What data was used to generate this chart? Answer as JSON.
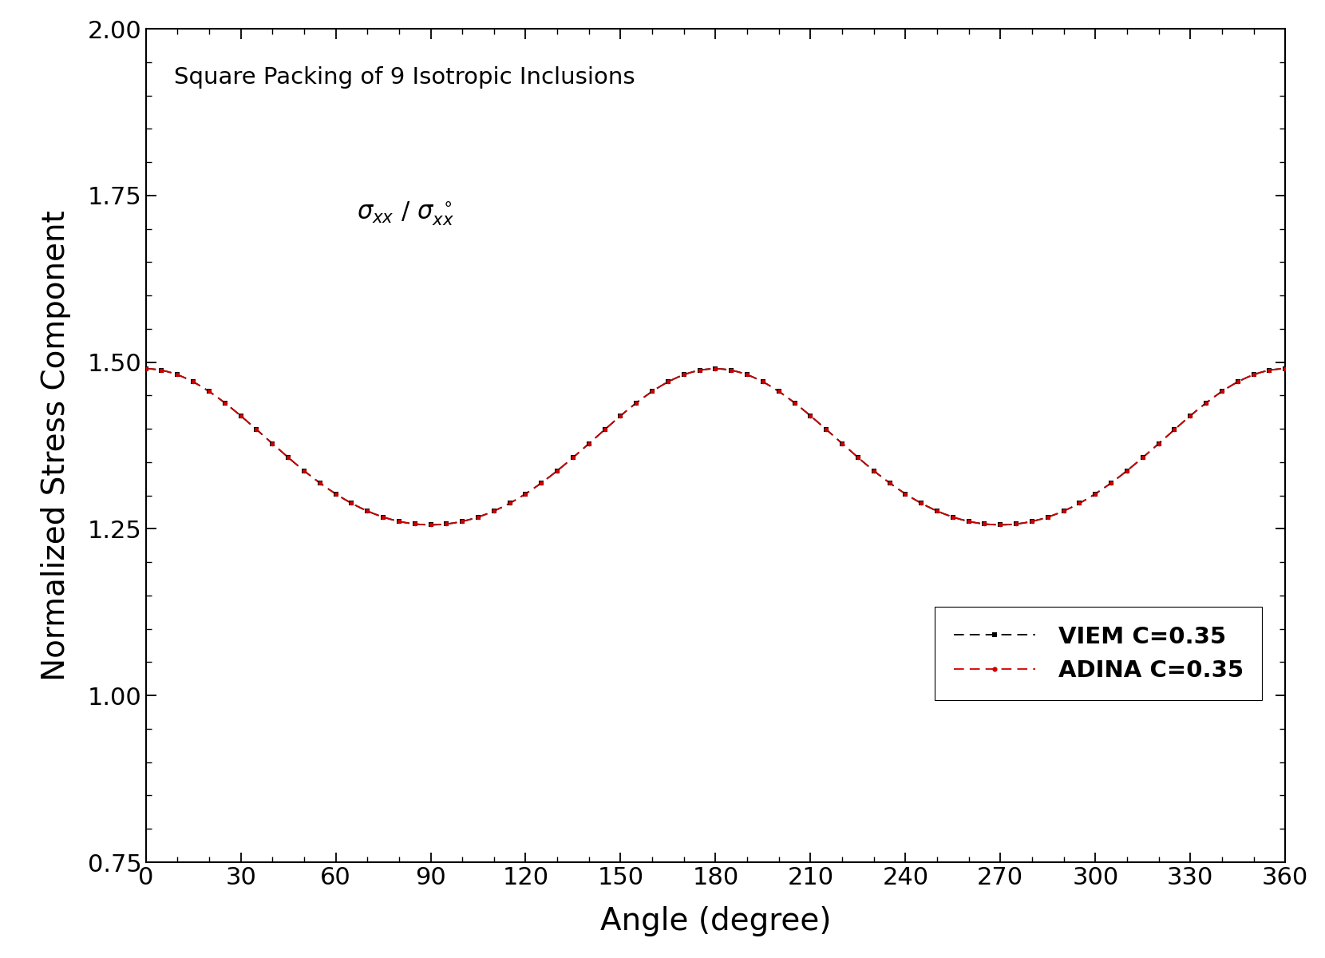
{
  "title_text": "Square Packing of 9 Isotropic Inclusions",
  "xlabel": "Angle (degree)",
  "ylabel": "Normalized Stress Component",
  "xlim": [
    0,
    360
  ],
  "ylim": [
    0.75,
    2.0
  ],
  "xticks": [
    0,
    30,
    60,
    90,
    120,
    150,
    180,
    210,
    240,
    270,
    300,
    330,
    360
  ],
  "yticks": [
    0.75,
    1.0,
    1.25,
    1.5,
    1.75,
    2.0
  ],
  "viem_color": "#000000",
  "adina_color": "#cc0000",
  "legend_labels": [
    "VIEM C=0.35",
    "ADINA C=0.35"
  ],
  "background_color": "#ffffff",
  "mean_val": 1.365,
  "amp1": 0.117,
  "amp2": 0.008,
  "marker_step": 5
}
